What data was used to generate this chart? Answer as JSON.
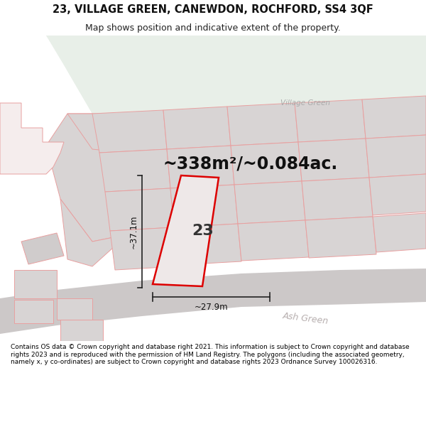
{
  "title_line1": "23, VILLAGE GREEN, CANEWDON, ROCHFORD, SS4 3QF",
  "title_line2": "Map shows position and indicative extent of the property.",
  "area_text": "~338m²/~0.084ac.",
  "number_label": "23",
  "dim_width": "~27.9m",
  "dim_height": "~37.1m",
  "village_green_label": "Village Green",
  "ash_green_label": "Ash Green",
  "footer_text": "Contains OS data © Crown copyright and database right 2021. This information is subject to Crown copyright and database rights 2023 and is reproduced with the permission of HM Land Registry. The polygons (including the associated geometry, namely x, y co-ordinates) are subject to Crown copyright and database rights 2023 Ordnance Survey 100026316.",
  "map_bg": "#f5eded",
  "green_area_color": "#e8efe8",
  "plot_fill": "#eee8e8",
  "plot_edge": "#dd0000",
  "gray_fill": "#d8d4d4",
  "pink_edge": "#e8a0a0",
  "road_fill": "#ccc8c8",
  "road_label_color": "#b8b0b0",
  "dim_line_color": "#222222",
  "white_bg": "#ffffff",
  "title_fontsize": 10.5,
  "subtitle_fontsize": 9.0,
  "area_fontsize": 17,
  "label_fontsize": 7.5,
  "number_fontsize": 16,
  "dim_fontsize": 8.5,
  "footer_fontsize": 6.5
}
